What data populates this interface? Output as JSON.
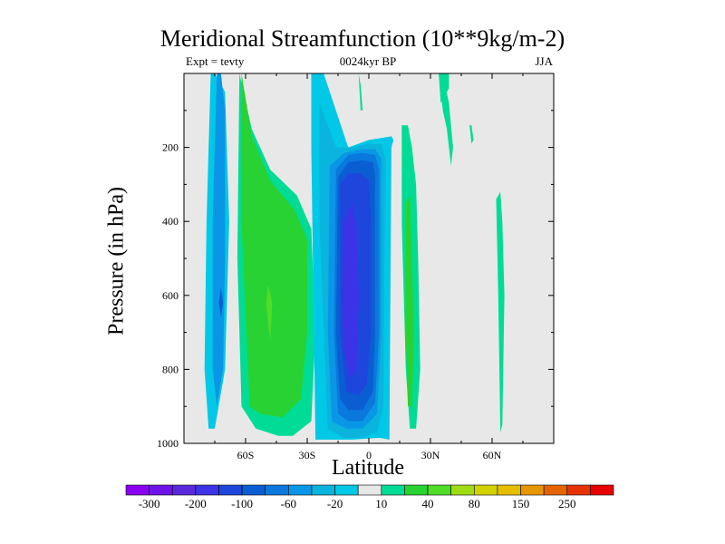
{
  "chart_data": {
    "type": "heatmap",
    "title": "Meridional Streamfunction (10**9kg/m-2)",
    "subtitle_left": "Expt = tevty",
    "subtitle_center": "0024kyr BP",
    "subtitle_right": "JJA",
    "xlabel": "Latitude",
    "ylabel": "Pressure (in hPa)",
    "xlim": [
      -90,
      90
    ],
    "ylim": [
      1000,
      0
    ],
    "xticks": [
      -60,
      -30,
      0,
      30,
      60
    ],
    "xtick_labels": [
      "60S",
      "30S",
      "0",
      "30N",
      "60N"
    ],
    "yticks": [
      200,
      400,
      600,
      800,
      1000
    ],
    "ytick_labels": [
      "200",
      "400",
      "600",
      "800",
      "1000"
    ],
    "background_color": "#e8e8e8",
    "colorbar": {
      "levels": [
        -300,
        -250,
        -200,
        -150,
        -100,
        -80,
        -60,
        -40,
        -20,
        -10,
        10,
        20,
        40,
        60,
        80,
        100,
        150,
        200,
        250,
        300
      ],
      "labels": [
        "-300",
        "-200",
        "-100",
        "-60",
        "-20",
        "10",
        "40",
        "80",
        "150",
        "250"
      ],
      "label_levels": [
        -300,
        -200,
        -100,
        -60,
        -20,
        10,
        40,
        80,
        150,
        250
      ],
      "colors": [
        "#8a00f0",
        "#6e14e8",
        "#5a28dc",
        "#3c32e6",
        "#1e46dc",
        "#0a5ed2",
        "#0a78dc",
        "#0a96e6",
        "#0ab4dc",
        "#00c8e6",
        "#e8e8e8",
        "#00dc96",
        "#28d232",
        "#50dc28",
        "#a0dc14",
        "#d2d200",
        "#e6be00",
        "#e69600",
        "#e66400",
        "#e63200",
        "#e60000"
      ]
    },
    "regions": [
      {
        "name": "cell-sh-outer",
        "value": -20,
        "lats": [
          -75,
          -70,
          -68,
          -70,
          -75,
          -78,
          -80,
          -79,
          -77
        ],
        "pres": [
          0,
          50,
          400,
          800,
          960,
          960,
          800,
          400,
          0
        ]
      },
      {
        "name": "cell-sh-outer-core",
        "value": -60,
        "lats": [
          -72,
          -70,
          -70,
          -71,
          -74,
          -76,
          -76,
          -74
        ],
        "pres": [
          0,
          100,
          500,
          800,
          900,
          800,
          400,
          0
        ]
      },
      {
        "name": "cell-sh-outer-spot",
        "value": -100,
        "lats": [
          -72,
          -71,
          -72,
          -73
        ],
        "pres": [
          580,
          620,
          660,
          620
        ]
      },
      {
        "name": "cell-ferrel-halo",
        "value": 10,
        "lats": [
          -63,
          -57,
          -48,
          -35,
          -28,
          -26,
          -28,
          -37,
          -44,
          -55,
          -62,
          -64
        ],
        "pres": [
          0,
          150,
          260,
          330,
          420,
          700,
          940,
          980,
          980,
          960,
          900,
          500
        ]
      },
      {
        "name": "cell-ferrel",
        "value": 20,
        "lats": [
          -62,
          -57,
          -48,
          -36,
          -30,
          -30,
          -33,
          -42,
          -53,
          -58,
          -62
        ],
        "pres": [
          0,
          170,
          290,
          370,
          450,
          700,
          880,
          930,
          920,
          900,
          400
        ]
      },
      {
        "name": "cell-ferrel-core",
        "value": 40,
        "lats": [
          -49,
          -47,
          -48,
          -49,
          -50
        ],
        "pres": [
          570,
          620,
          720,
          680,
          620
        ]
      },
      {
        "name": "cell-hadley-1",
        "value": -20,
        "lats": [
          -28,
          -22,
          -10,
          0,
          11,
          12,
          11,
          10,
          5,
          -8,
          -17,
          -26,
          -28
        ],
        "pres": [
          0,
          0,
          200,
          180,
          170,
          180,
          200,
          990,
          985,
          990,
          990,
          990,
          200
        ]
      },
      {
        "name": "cell-hadley-2",
        "value": -40,
        "lats": [
          -24,
          -16,
          -8,
          0,
          6,
          8,
          7,
          4,
          -4,
          -12,
          -20,
          -24
        ],
        "pres": [
          80,
          200,
          200,
          190,
          190,
          230,
          900,
          970,
          985,
          985,
          960,
          400
        ]
      },
      {
        "name": "cell-hadley-3",
        "value": -60,
        "lats": [
          -19,
          -12,
          -4,
          3,
          6,
          6,
          4,
          -3,
          -11,
          -18,
          -20
        ],
        "pres": [
          250,
          215,
          205,
          205,
          230,
          700,
          920,
          960,
          960,
          940,
          700
        ]
      },
      {
        "name": "cell-hadley-4",
        "value": -80,
        "lats": [
          -16,
          -10,
          -3,
          3,
          5,
          5,
          3,
          -3,
          -10,
          -15,
          -17
        ],
        "pres": [
          260,
          220,
          215,
          220,
          260,
          700,
          890,
          940,
          940,
          920,
          700
        ]
      },
      {
        "name": "cell-hadley-5",
        "value": -100,
        "lats": [
          -15,
          -10,
          -3,
          2,
          3,
          3,
          2,
          -3,
          -10,
          -14,
          -16
        ],
        "pres": [
          280,
          240,
          235,
          240,
          270,
          700,
          860,
          910,
          910,
          880,
          700
        ]
      },
      {
        "name": "cell-hadley-6",
        "value": -150,
        "lats": [
          -14,
          -10,
          -4,
          0,
          1,
          1,
          -1,
          -5,
          -11,
          -14
        ],
        "pres": [
          300,
          270,
          270,
          290,
          400,
          700,
          840,
          870,
          860,
          700
        ]
      },
      {
        "name": "cell-hadley-core",
        "value": -200,
        "lats": [
          -12,
          -8,
          -6,
          -5,
          -6,
          -9,
          -12,
          -13
        ],
        "pres": [
          400,
          350,
          420,
          600,
          800,
          820,
          750,
          600
        ]
      },
      {
        "name": "cell-nh-band",
        "value": 10,
        "lats": [
          16,
          19,
          21,
          23,
          24,
          25,
          23,
          20,
          18,
          16
        ],
        "pres": [
          140,
          140,
          200,
          300,
          500,
          800,
          960,
          960,
          800,
          400
        ]
      },
      {
        "name": "cell-nh-band-core",
        "value": 20,
        "lats": [
          18,
          20,
          21,
          22,
          21,
          19,
          18
        ],
        "pres": [
          350,
          330,
          500,
          700,
          900,
          900,
          700
        ]
      },
      {
        "name": "cell-nh-band-blue",
        "value": -10,
        "lats": [
          29,
          30,
          31,
          30
        ],
        "pres": [
          320,
          330,
          350,
          330
        ]
      },
      {
        "name": "cell-top-green-1",
        "value": 10,
        "lats": [
          -5,
          -4,
          -3,
          -4
        ],
        "pres": [
          0,
          30,
          100,
          100
        ]
      },
      {
        "name": "cell-top-green-2",
        "value": 10,
        "lats": [
          34,
          36,
          39,
          41,
          40,
          38,
          36
        ],
        "pres": [
          0,
          0,
          80,
          200,
          250,
          150,
          100
        ]
      },
      {
        "name": "cell-top-green-3",
        "value": 10,
        "lats": [
          34,
          39,
          39,
          35
        ],
        "pres": [
          0,
          0,
          40,
          80
        ]
      },
      {
        "name": "cell-top-blue",
        "value": -10,
        "lats": [
          73,
          73.5,
          74,
          73.5
        ],
        "pres": [
          0,
          30,
          60,
          30
        ]
      },
      {
        "name": "cell-nh-60",
        "value": 10,
        "lats": [
          62,
          64,
          65,
          66,
          65,
          64,
          63
        ],
        "pres": [
          340,
          320,
          400,
          600,
          950,
          970,
          600
        ]
      },
      {
        "name": "cell-nh-52",
        "value": 10,
        "lats": [
          49,
          50,
          51,
          50
        ],
        "pres": [
          140,
          140,
          180,
          190
        ]
      }
    ]
  }
}
